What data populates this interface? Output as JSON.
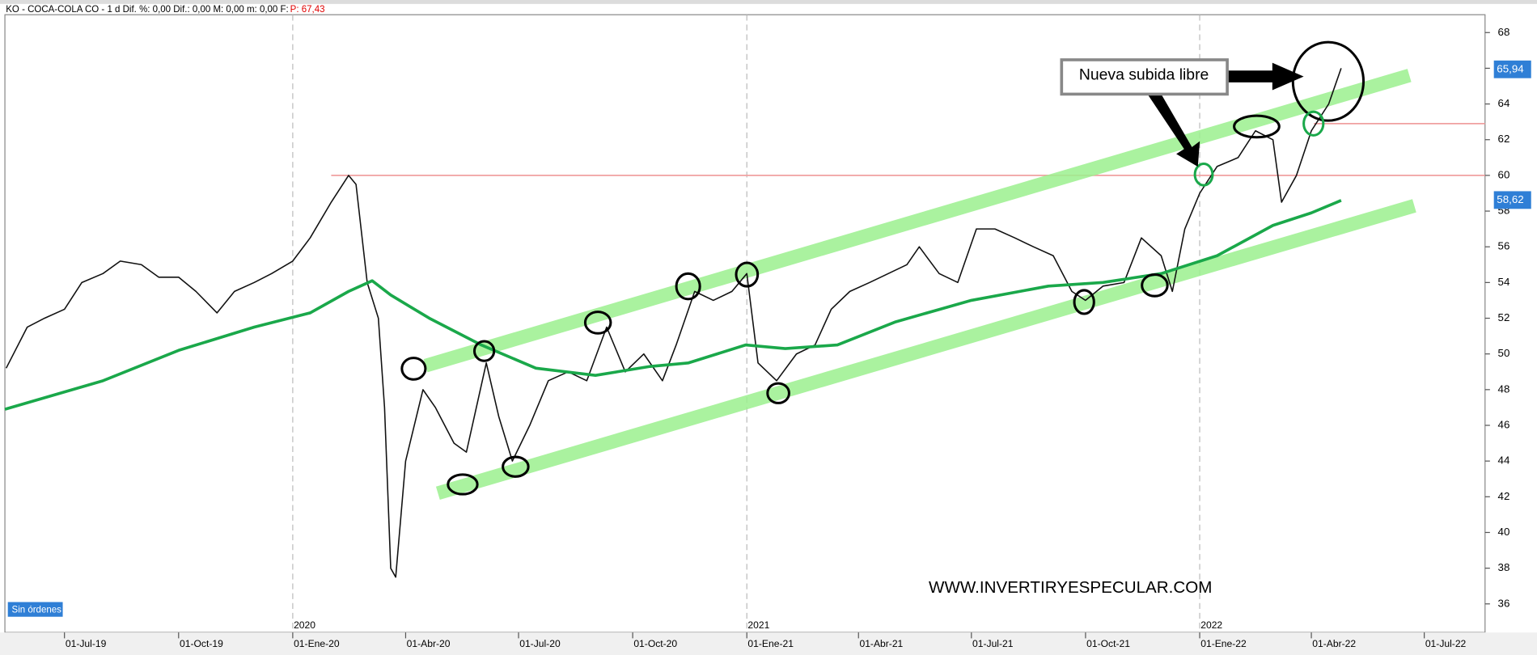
{
  "chart_data": {
    "type": "line",
    "header": {
      "text": "KO - COCA-COLA CO -  1 d  Dif. %: 0,00  Dif.: 0,00  M: 0,00  m: 0,00  F:",
      "price": "P: 67,43"
    },
    "xlim": [
      "2019-05-14",
      "2022-08-19"
    ],
    "ylim": [
      34.4,
      69
    ],
    "yticks": [
      36,
      38,
      40,
      42,
      44,
      46,
      48,
      50,
      52,
      54,
      56,
      58,
      60,
      62,
      64,
      66,
      68
    ],
    "xticks": [
      {
        "value": "2019-07-01",
        "label": "01-Jul-19"
      },
      {
        "value": "2019-10-01",
        "label": "01-Oct-19"
      },
      {
        "value": "2020-01-01",
        "label": "01-Ene-20"
      },
      {
        "value": "2020-04-01",
        "label": "01-Abr-20"
      },
      {
        "value": "2020-07-01",
        "label": "01-Jul-20"
      },
      {
        "value": "2020-10-01",
        "label": "01-Oct-20"
      },
      {
        "value": "2021-01-01",
        "label": "01-Ene-21"
      },
      {
        "value": "2021-04-01",
        "label": "01-Abr-21"
      },
      {
        "value": "2021-07-01",
        "label": "01-Jul-21"
      },
      {
        "value": "2021-10-01",
        "label": "01-Oct-21"
      },
      {
        "value": "2022-01-01",
        "label": "01-Ene-22"
      },
      {
        "value": "2022-04-01",
        "label": "01-Abr-22"
      },
      {
        "value": "2022-07-01",
        "label": "01-Jul-22"
      }
    ],
    "year_markers": [
      {
        "value": "2020-01-01",
        "label": "2020"
      },
      {
        "value": "2021-01-01",
        "label": "2021"
      },
      {
        "value": "2022-01-01",
        "label": "2022"
      }
    ],
    "series": [
      {
        "color": "#111111",
        "x": [
          "2019-05-15",
          "2019-06-01",
          "2019-06-15",
          "2019-07-01",
          "2019-07-15",
          "2019-08-01",
          "2019-08-15",
          "2019-09-01",
          "2019-09-15",
          "2019-10-01",
          "2019-10-15",
          "2019-11-01",
          "2019-11-15",
          "2019-12-01",
          "2019-12-15",
          "2020-01-01",
          "2020-01-15",
          "2020-02-01",
          "2020-02-15",
          "2020-02-21",
          "2020-03-01",
          "2020-03-10",
          "2020-03-15",
          "2020-03-20",
          "2020-03-24",
          "2020-04-01",
          "2020-04-15",
          "2020-04-25",
          "2020-05-10",
          "2020-05-20",
          "2020-06-05",
          "2020-06-15",
          "2020-06-26",
          "2020-07-10",
          "2020-07-25",
          "2020-08-10",
          "2020-08-25",
          "2020-09-10",
          "2020-09-25",
          "2020-10-10",
          "2020-10-25",
          "2020-11-05",
          "2020-11-20",
          "2020-12-05",
          "2020-12-20",
          "2021-01-01",
          "2021-01-10",
          "2021-01-25",
          "2021-02-10",
          "2021-02-25",
          "2021-03-10",
          "2021-03-25",
          "2021-04-10",
          "2021-04-25",
          "2021-05-10",
          "2021-05-20",
          "2021-06-05",
          "2021-06-20",
          "2021-07-05",
          "2021-07-20",
          "2021-08-05",
          "2021-08-20",
          "2021-09-05",
          "2021-09-20",
          "2021-10-01",
          "2021-10-15",
          "2021-11-01",
          "2021-11-15",
          "2021-12-01",
          "2021-12-10",
          "2021-12-20",
          "2022-01-01",
          "2022-01-15",
          "2022-02-01",
          "2022-02-15",
          "2022-03-01",
          "2022-03-08",
          "2022-03-20",
          "2022-04-01",
          "2022-04-15",
          "2022-04-25"
        ],
        "values": [
          49.2,
          51.5,
          52,
          52.5,
          54,
          54.5,
          55.2,
          55,
          54.3,
          54.3,
          53.5,
          52.3,
          53.5,
          54,
          54.5,
          55.2,
          56.5,
          58.5,
          60,
          59.5,
          54,
          52,
          47,
          38,
          37.5,
          44,
          48,
          47,
          45,
          44.5,
          49.5,
          46.5,
          44,
          46,
          48.5,
          49,
          48.5,
          51.5,
          49,
          50,
          48.5,
          50.5,
          53.5,
          53,
          53.5,
          54.5,
          49.5,
          48.5,
          50,
          50.5,
          52.5,
          53.5,
          54,
          54.5,
          55,
          56,
          54.5,
          54,
          57,
          57,
          56.5,
          56,
          55.5,
          53.5,
          53,
          53.8,
          54,
          56.5,
          55.5,
          53.5,
          57,
          59,
          60.5,
          61,
          62.5,
          62,
          58.5,
          60,
          62.5,
          64,
          66
        ]
      },
      {
        "color": "#1aa84a",
        "x": [
          "2019-05-14",
          "2019-08-01",
          "2019-10-01",
          "2019-12-01",
          "2020-01-15",
          "2020-02-15",
          "2020-03-05",
          "2020-03-20",
          "2020-04-20",
          "2020-06-01",
          "2020-07-15",
          "2020-09-01",
          "2020-10-15",
          "2020-11-15",
          "2020-12-31",
          "2021-02-01",
          "2021-03-15",
          "2021-05-01",
          "2021-07-01",
          "2021-09-01",
          "2021-10-15",
          "2021-12-01",
          "2022-01-15",
          "2022-03-01",
          "2022-04-01",
          "2022-04-25"
        ],
        "values": [
          46.9,
          48.5,
          50.2,
          51.5,
          52.3,
          53.5,
          54.1,
          53.3,
          52,
          50.5,
          49.2,
          48.8,
          49.3,
          49.5,
          50.5,
          50.3,
          50.5,
          51.8,
          53,
          53.8,
          54,
          54.5,
          55.5,
          57.2,
          57.9,
          58.6
        ]
      }
    ],
    "price_labels": [
      {
        "value": 65.94,
        "label": "65,94"
      },
      {
        "value": 58.62,
        "label": "58,62"
      }
    ],
    "hlines": [
      {
        "value": 60,
        "from": "2020-02-01"
      },
      {
        "value": 62.9,
        "from": "2022-04-03"
      }
    ],
    "channels": [
      {
        "x": [
          "2020-04-17",
          "2022-06-19"
        ],
        "values": [
          49.34,
          65.6
        ]
      },
      {
        "x": [
          "2020-04-27",
          "2022-06-23"
        ],
        "values": [
          42.2,
          58.3
        ]
      }
    ],
    "annotation": "Nueva subida libre",
    "status": "Sin órdenes",
    "watermark": "WWW.INVERTIRYESPECULAR.COM"
  }
}
